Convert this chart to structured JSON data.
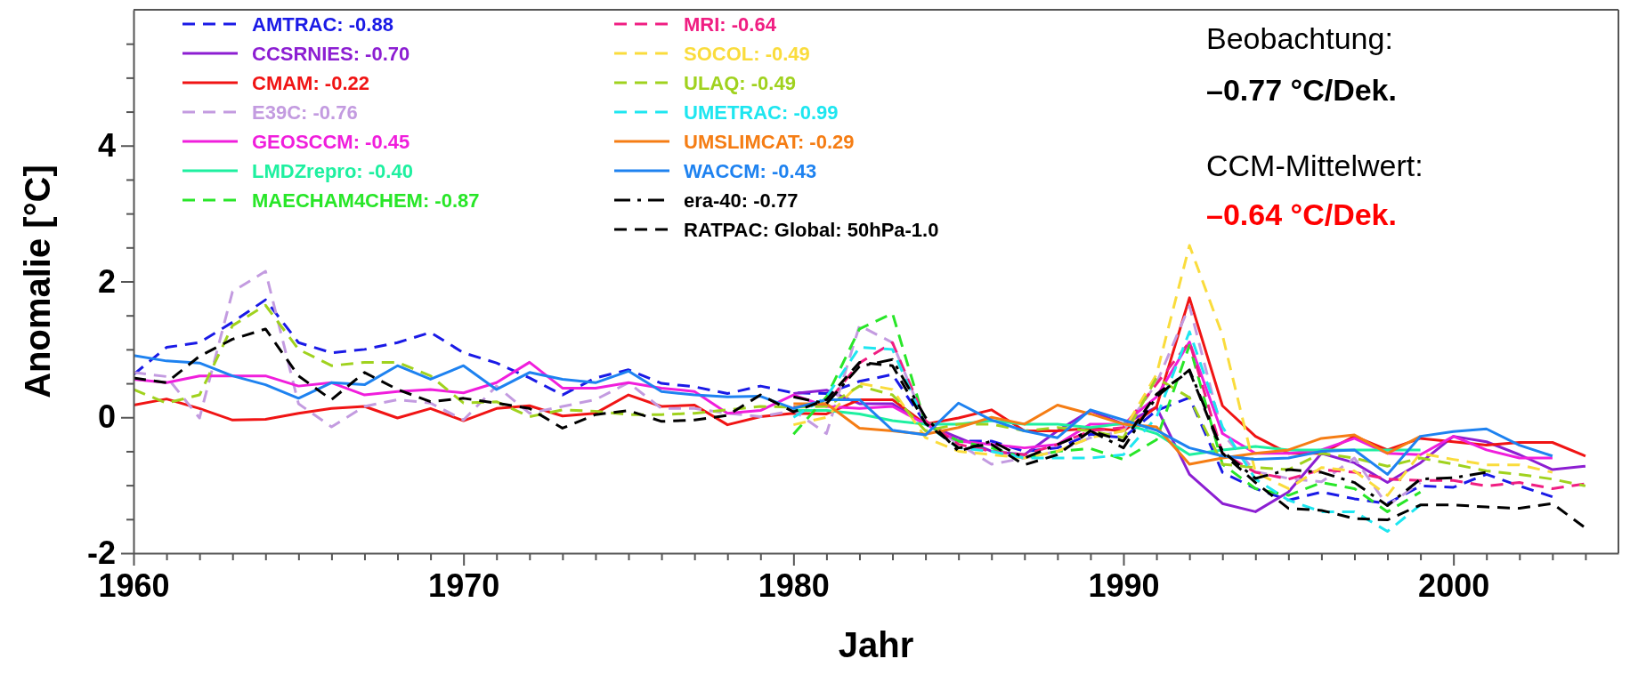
{
  "chart_data": {
    "type": "line",
    "xlabel": "Jahr",
    "ylabel": "Anomalie [°C]",
    "x": [
      1960,
      1961,
      1962,
      1963,
      1964,
      1965,
      1966,
      1967,
      1968,
      1969,
      1970,
      1971,
      1972,
      1973,
      1974,
      1975,
      1976,
      1977,
      1978,
      1979,
      1980,
      1981,
      1982,
      1983,
      1984,
      1985,
      1986,
      1987,
      1988,
      1989,
      1990,
      1991,
      1992,
      1993,
      1994,
      1995,
      1996,
      1997,
      1998,
      1999,
      2000,
      2001,
      2002,
      2003,
      2004
    ],
    "xlim": [
      1960,
      2005
    ],
    "xticks": [
      1960,
      {
        "value": 1961,
        "label": null
      },
      {
        "value": 1962,
        "label": null
      },
      {
        "value": 1963,
        "label": null
      },
      {
        "value": 1964,
        "label": null
      },
      {
        "value": 1965,
        "label": null
      },
      {
        "value": 1966,
        "label": null
      },
      {
        "value": 1967,
        "label": null
      },
      {
        "value": 1968,
        "label": null
      },
      {
        "value": 1969,
        "label": null
      },
      1970,
      {
        "value": 1971,
        "label": null
      },
      {
        "value": 1972,
        "label": null
      },
      {
        "value": 1973,
        "label": null
      },
      {
        "value": 1974,
        "label": null
      },
      {
        "value": 1975,
        "label": null
      },
      {
        "value": 1976,
        "label": null
      },
      {
        "value": 1977,
        "label": null
      },
      {
        "value": 1978,
        "label": null
      },
      {
        "value": 1979,
        "label": null
      },
      1980,
      {
        "value": 1981,
        "label": null
      },
      {
        "value": 1982,
        "label": null
      },
      {
        "value": 1983,
        "label": null
      },
      {
        "value": 1984,
        "label": null
      },
      {
        "value": 1985,
        "label": null
      },
      {
        "value": 1986,
        "label": null
      },
      {
        "value": 1987,
        "label": null
      },
      {
        "value": 1988,
        "label": null
      },
      {
        "value": 1989,
        "label": null
      },
      1990,
      {
        "value": 1991,
        "label": null
      },
      {
        "value": 1992,
        "label": null
      },
      {
        "value": 1993,
        "label": null
      },
      {
        "value": 1994,
        "label": null
      },
      {
        "value": 1995,
        "label": null
      },
      {
        "value": 1996,
        "label": null
      },
      {
        "value": 1997,
        "label": null
      },
      {
        "value": 1998,
        "label": null
      },
      {
        "value": 1999,
        "label": null
      },
      2000,
      {
        "value": 2001,
        "label": null
      },
      {
        "value": 2002,
        "label": null
      },
      {
        "value": 2003,
        "label": null
      },
      {
        "value": 2004,
        "label": null
      }
    ],
    "ylim": [
      -2,
      6
    ],
    "yticks": [
      -2,
      {
        "value": -1.5,
        "label": null
      },
      {
        "value": -1,
        "label": null
      },
      {
        "value": -0.5,
        "label": null
      },
      0,
      {
        "value": 0.5,
        "label": null
      },
      {
        "value": 1,
        "label": null
      },
      {
        "value": 1.5,
        "label": null
      },
      2,
      {
        "value": 2.5,
        "label": null
      },
      {
        "value": 3,
        "label": null
      },
      {
        "value": 3.5,
        "label": null
      },
      4,
      {
        "value": 4.5,
        "label": null
      },
      {
        "value": 5,
        "label": null
      },
      {
        "value": 5.5,
        "label": null
      }
    ],
    "legend": "top left",
    "grid": false,
    "annotations": [
      "Beobachtung:",
      "–0.77 °C/Dek.",
      "CCM-Mittelwert:",
      "–0.64 °C/Dek."
    ],
    "series": [
      {
        "name": "AMTRAC: -0.88",
        "color": "#1a1ae6",
        "line_style": "dashed",
        "values": [
          0.63,
          1.03,
          1.1,
          1.4,
          1.73,
          1.1,
          0.95,
          1.0,
          1.1,
          1.25,
          0.95,
          0.8,
          0.58,
          0.33,
          0.58,
          0.7,
          0.5,
          0.45,
          0.35,
          0.46,
          0.36,
          0.35,
          0.53,
          0.63,
          -0.09,
          -0.35,
          -0.35,
          -0.5,
          -0.45,
          -0.25,
          -0.3,
          0.1,
          0.29,
          -0.81,
          -1.05,
          -1.22,
          -1.1,
          -1.2,
          -1.27,
          -1.01,
          -1.03,
          -0.84,
          -1.01,
          -1.17,
          null
        ]
      },
      {
        "name": "CCSRNIES: -0.70",
        "color": "#8c1ed2",
        "line_style": "solid",
        "values": [
          null,
          null,
          null,
          null,
          null,
          null,
          null,
          null,
          null,
          null,
          null,
          null,
          null,
          null,
          null,
          null,
          null,
          null,
          null,
          null,
          0.35,
          0.4,
          0.2,
          0.2,
          -0.1,
          -0.3,
          -0.5,
          -0.55,
          -0.2,
          0.1,
          -0.1,
          0.15,
          -0.84,
          -1.27,
          -1.39,
          -1.1,
          -0.53,
          -0.67,
          -0.96,
          -0.67,
          -0.28,
          -0.36,
          -0.55,
          -0.77,
          -0.72
        ]
      },
      {
        "name": "CMAM: -0.22",
        "color": "#f01414",
        "line_style": "solid",
        "values": [
          0.18,
          0.27,
          0.13,
          -0.04,
          -0.03,
          0.06,
          0.13,
          0.16,
          -0.01,
          0.13,
          -0.05,
          0.13,
          0.17,
          0.02,
          0.06,
          0.33,
          0.16,
          0.18,
          -0.11,
          0.01,
          0.06,
          0.05,
          0.26,
          0.26,
          -0.1,
          -0.01,
          0.11,
          -0.2,
          -0.2,
          -0.16,
          -0.2,
          0.15,
          1.76,
          0.17,
          -0.28,
          -0.53,
          -0.53,
          -0.28,
          -0.48,
          -0.31,
          -0.36,
          -0.41,
          -0.37,
          -0.37,
          -0.57
        ]
      },
      {
        "name": "E39C: -0.76",
        "color": "#c39be0",
        "line_style": "dashed",
        "values": [
          0.66,
          0.6,
          -0.01,
          1.85,
          2.15,
          0.2,
          -0.14,
          0.16,
          0.26,
          0.21,
          -0.04,
          0.46,
          0.06,
          0.16,
          0.26,
          0.51,
          0.13,
          0.13,
          0.06,
          0.01,
          0.1,
          -0.24,
          1.35,
          1.1,
          -0.09,
          -0.39,
          -0.69,
          -0.6,
          -0.5,
          -0.3,
          -0.2,
          0.5,
          1.64,
          -0.24,
          -0.8,
          -0.9,
          -0.95,
          -0.6,
          -1.3,
          -0.96,
          null,
          null,
          null,
          null,
          null
        ]
      },
      {
        "name": "GEOSCCM: -0.45",
        "color": "#f01edc",
        "line_style": "solid",
        "values": [
          0.56,
          0.51,
          0.61,
          0.61,
          0.61,
          0.46,
          0.51,
          0.33,
          0.38,
          0.41,
          0.36,
          0.51,
          0.81,
          0.43,
          0.43,
          0.51,
          0.43,
          0.38,
          0.06,
          0.1,
          0.33,
          0.16,
          0.13,
          0.16,
          -0.1,
          -0.35,
          -0.4,
          -0.45,
          -0.4,
          -0.1,
          -0.1,
          0.3,
          1.11,
          -0.24,
          -0.53,
          -0.53,
          -0.48,
          -0.31,
          -0.53,
          -0.55,
          -0.28,
          -0.48,
          -0.6,
          -0.6,
          null
        ]
      },
      {
        "name": "LMDZrepro: -0.40",
        "color": "#1ef0a0",
        "line_style": "solid",
        "values": [
          null,
          null,
          null,
          null,
          null,
          null,
          null,
          null,
          null,
          null,
          null,
          null,
          null,
          null,
          null,
          null,
          null,
          null,
          null,
          null,
          0.1,
          0.1,
          0.05,
          -0.05,
          -0.1,
          -0.1,
          -0.05,
          -0.1,
          -0.1,
          -0.15,
          -0.09,
          -0.24,
          -0.55,
          -0.48,
          -0.43,
          -0.48,
          -0.48,
          -0.48,
          -0.48,
          -0.48,
          null,
          null,
          null,
          null,
          null
        ]
      },
      {
        "name": "MAECHAM4CHEM: -0.87",
        "color": "#28e628",
        "line_style": "dashed",
        "values": [
          null,
          null,
          null,
          null,
          null,
          null,
          null,
          null,
          null,
          null,
          null,
          null,
          null,
          null,
          null,
          null,
          null,
          null,
          null,
          null,
          -0.25,
          0.3,
          1.3,
          1.53,
          -0.1,
          -0.35,
          -0.45,
          -0.6,
          -0.5,
          -0.46,
          -0.62,
          -0.33,
          1.06,
          -0.69,
          -1.05,
          -1.15,
          -0.96,
          -1.05,
          -1.39,
          -1.1,
          null,
          null,
          null,
          null,
          null
        ]
      },
      {
        "name": "MRI: -0.64",
        "color": "#f01e82",
        "line_style": "dashed",
        "values": [
          null,
          null,
          null,
          null,
          null,
          null,
          null,
          null,
          null,
          null,
          null,
          null,
          null,
          null,
          null,
          null,
          null,
          null,
          null,
          null,
          0.15,
          0.2,
          0.8,
          1.1,
          -0.05,
          -0.4,
          -0.5,
          -0.55,
          -0.4,
          -0.2,
          -0.15,
          0.49,
          1.11,
          -0.53,
          -0.81,
          -0.91,
          -0.77,
          -0.81,
          -0.91,
          -0.93,
          -0.93,
          -1.01,
          -0.96,
          -1.05,
          -0.98
        ]
      },
      {
        "name": "SOCOL: -0.49",
        "color": "#fadc3c",
        "line_style": "dashed",
        "values": [
          null,
          null,
          null,
          null,
          null,
          null,
          null,
          null,
          null,
          null,
          null,
          null,
          null,
          null,
          null,
          null,
          null,
          null,
          null,
          null,
          -0.11,
          0.0,
          0.5,
          0.41,
          -0.3,
          -0.5,
          -0.55,
          -0.6,
          -0.5,
          -0.3,
          -0.2,
          0.63,
          2.53,
          1.21,
          -0.81,
          -1.05,
          -0.74,
          -0.79,
          -1.15,
          -0.53,
          -0.62,
          -0.7,
          -0.7,
          -0.81,
          null
        ]
      },
      {
        "name": "ULAQ: -0.49",
        "color": "#a0d21e",
        "line_style": "dashed",
        "values": [
          0.41,
          0.21,
          0.33,
          1.35,
          1.65,
          1.0,
          0.76,
          0.81,
          0.81,
          0.61,
          0.21,
          0.23,
          0.01,
          0.11,
          0.09,
          0.04,
          0.04,
          0.06,
          0.11,
          0.16,
          0.15,
          0.16,
          0.46,
          0.33,
          -0.2,
          -0.1,
          -0.1,
          -0.2,
          -0.15,
          -0.2,
          -0.3,
          0.58,
          0.29,
          -0.69,
          -0.74,
          -0.77,
          -0.53,
          -0.6,
          -0.72,
          -0.6,
          -0.69,
          -0.79,
          -0.84,
          -0.91,
          -1.01
        ]
      },
      {
        "name": "UMETRAC: -0.99",
        "color": "#1ee6f0",
        "line_style": "dashed",
        "values": [
          null,
          null,
          null,
          null,
          null,
          null,
          null,
          null,
          null,
          null,
          null,
          null,
          null,
          null,
          null,
          null,
          null,
          null,
          null,
          null,
          0.0,
          0.3,
          1.03,
          1.0,
          -0.1,
          -0.45,
          -0.5,
          -0.6,
          -0.6,
          -0.6,
          -0.55,
          0.0,
          1.26,
          -0.14,
          -0.91,
          -1.22,
          -1.39,
          -1.39,
          -1.68,
          -1.29,
          null,
          null,
          null,
          null,
          null
        ]
      },
      {
        "name": "UMSLIMCAT: -0.29",
        "color": "#f57d14",
        "line_style": "solid",
        "values": [
          null,
          null,
          null,
          null,
          null,
          null,
          null,
          null,
          null,
          null,
          null,
          null,
          null,
          null,
          null,
          null,
          null,
          null,
          null,
          null,
          0.2,
          0.2,
          -0.16,
          -0.2,
          -0.25,
          -0.15,
          0.0,
          -0.1,
          0.18,
          0.05,
          -0.1,
          -0.14,
          -0.69,
          -0.6,
          -0.53,
          -0.48,
          -0.31,
          -0.26,
          -0.53,
          -0.28,
          null,
          null,
          null,
          null,
          null
        ]
      },
      {
        "name": "WACCM: -0.43",
        "color": "#1e82f0",
        "line_style": "solid",
        "values": [
          0.91,
          0.83,
          0.8,
          0.61,
          0.48,
          0.28,
          0.51,
          0.48,
          0.76,
          0.56,
          0.76,
          0.41,
          0.66,
          0.56,
          0.51,
          0.68,
          0.38,
          0.33,
          0.3,
          0.31,
          0.13,
          0.26,
          0.26,
          -0.19,
          -0.26,
          0.21,
          -0.04,
          -0.2,
          -0.3,
          0.11,
          -0.04,
          -0.19,
          -0.45,
          -0.57,
          -0.62,
          -0.6,
          -0.5,
          -0.48,
          -0.84,
          -0.28,
          -0.21,
          -0.17,
          -0.41,
          -0.57,
          null
        ]
      },
      {
        "name": "era-40: -0.77",
        "color": "#000000",
        "line_style": "dashdot",
        "values": [
          null,
          null,
          null,
          null,
          null,
          null,
          null,
          null,
          null,
          null,
          null,
          null,
          null,
          null,
          null,
          null,
          null,
          null,
          null,
          null,
          0.3,
          0.2,
          0.75,
          0.85,
          0.0,
          -0.5,
          -0.35,
          -0.6,
          -0.4,
          -0.2,
          -0.45,
          0.3,
          0.7,
          -0.5,
          -0.9,
          -0.77,
          -0.81,
          -0.96,
          -1.3,
          -0.91,
          -0.89,
          -0.81,
          null,
          null,
          null
        ]
      },
      {
        "name": "RATPAC: Global: 50hPa-1.0",
        "color": "#000000",
        "line_style": "dashed",
        "values": [
          0.58,
          0.51,
          0.9,
          1.15,
          1.3,
          0.61,
          0.26,
          0.66,
          0.41,
          0.23,
          0.28,
          0.21,
          0.13,
          -0.16,
          0.04,
          0.1,
          -0.06,
          -0.04,
          0.03,
          0.33,
          0.08,
          0.26,
          0.81,
          0.76,
          -0.09,
          -0.45,
          -0.4,
          -0.7,
          -0.55,
          -0.2,
          -0.35,
          0.34,
          0.68,
          -0.53,
          -0.96,
          -1.34,
          -1.37,
          -1.49,
          -1.51,
          -1.29,
          -1.29,
          -1.32,
          -1.34,
          -1.27,
          -1.63
        ]
      }
    ]
  }
}
